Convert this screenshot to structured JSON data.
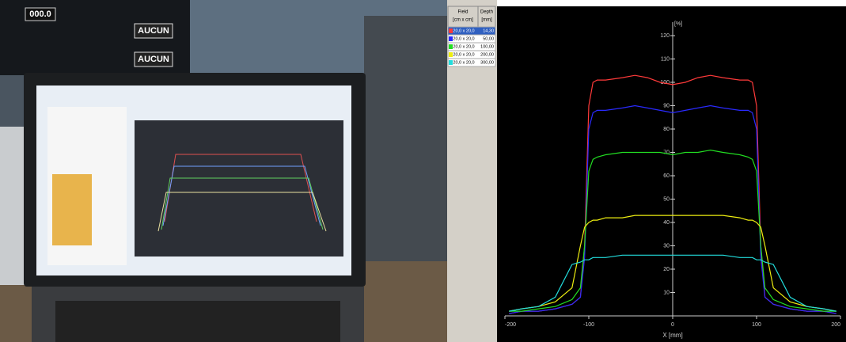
{
  "photo": {
    "labels": [
      "000.0",
      "AUCUN",
      "AUCUN"
    ]
  },
  "chart_data": {
    "type": "line",
    "y_unit": "[%]",
    "x_label": "X [mm]",
    "legend_header": {
      "field": "Field",
      "field_unit": "[cm x cm]",
      "depth": "Depth",
      "depth_unit": "[mm]"
    },
    "x": [
      -195,
      -180,
      -160,
      -140,
      -120,
      -110,
      -105,
      -100,
      -95,
      -90,
      -80,
      -60,
      -45,
      -30,
      -15,
      0,
      15,
      30,
      45,
      60,
      80,
      90,
      95,
      100,
      105,
      110,
      120,
      140,
      160,
      180,
      195
    ],
    "series": [
      {
        "name": "20,0 x 20,0",
        "depth": "14,30",
        "color": "#ff3a3a",
        "values": [
          1,
          2,
          2,
          3,
          5,
          8,
          30,
          90,
          100,
          101,
          101,
          102,
          103,
          102,
          100,
          99,
          100,
          102,
          103,
          102,
          101,
          101,
          100,
          90,
          30,
          8,
          5,
          3,
          2,
          2,
          1
        ]
      },
      {
        "name": "20,0 x 20,0",
        "depth": "50,00",
        "color": "#2a2aff",
        "values": [
          1,
          2,
          2,
          3,
          5,
          8,
          25,
          80,
          87,
          88,
          88,
          89,
          90,
          89,
          88,
          87,
          88,
          89,
          90,
          89,
          88,
          88,
          87,
          80,
          25,
          8,
          5,
          3,
          2,
          2,
          1
        ]
      },
      {
        "name": "20,0 x 20,0",
        "depth": "100,00",
        "color": "#22dd22",
        "values": [
          2,
          2,
          3,
          4,
          7,
          12,
          30,
          62,
          67,
          68,
          69,
          70,
          70,
          70,
          70,
          69,
          70,
          70,
          71,
          70,
          69,
          68,
          67,
          62,
          30,
          12,
          7,
          4,
          3,
          2,
          2
        ]
      },
      {
        "name": "20,0 x 20,0",
        "depth": "200,00",
        "color": "#eeee10",
        "values": [
          2,
          3,
          4,
          6,
          12,
          30,
          38,
          40,
          41,
          41,
          42,
          42,
          43,
          43,
          43,
          43,
          43,
          43,
          43,
          43,
          42,
          41,
          41,
          40,
          38,
          30,
          12,
          6,
          4,
          3,
          2
        ]
      },
      {
        "name": "20,0 x 20,0",
        "depth": "300,00",
        "color": "#22dddd",
        "values": [
          2,
          3,
          4,
          8,
          22,
          23,
          24,
          24,
          25,
          25,
          25,
          26,
          26,
          26,
          26,
          26,
          26,
          26,
          26,
          26,
          25,
          25,
          25,
          24,
          24,
          23,
          22,
          8,
          4,
          3,
          2
        ]
      }
    ],
    "xlim": [
      -200,
      200
    ],
    "xticks": [
      -200,
      -100,
      0,
      100,
      200
    ],
    "ylim": [
      0,
      120
    ],
    "yticks": [
      10,
      20,
      30,
      40,
      50,
      60,
      70,
      80,
      90,
      100,
      110,
      120
    ]
  }
}
